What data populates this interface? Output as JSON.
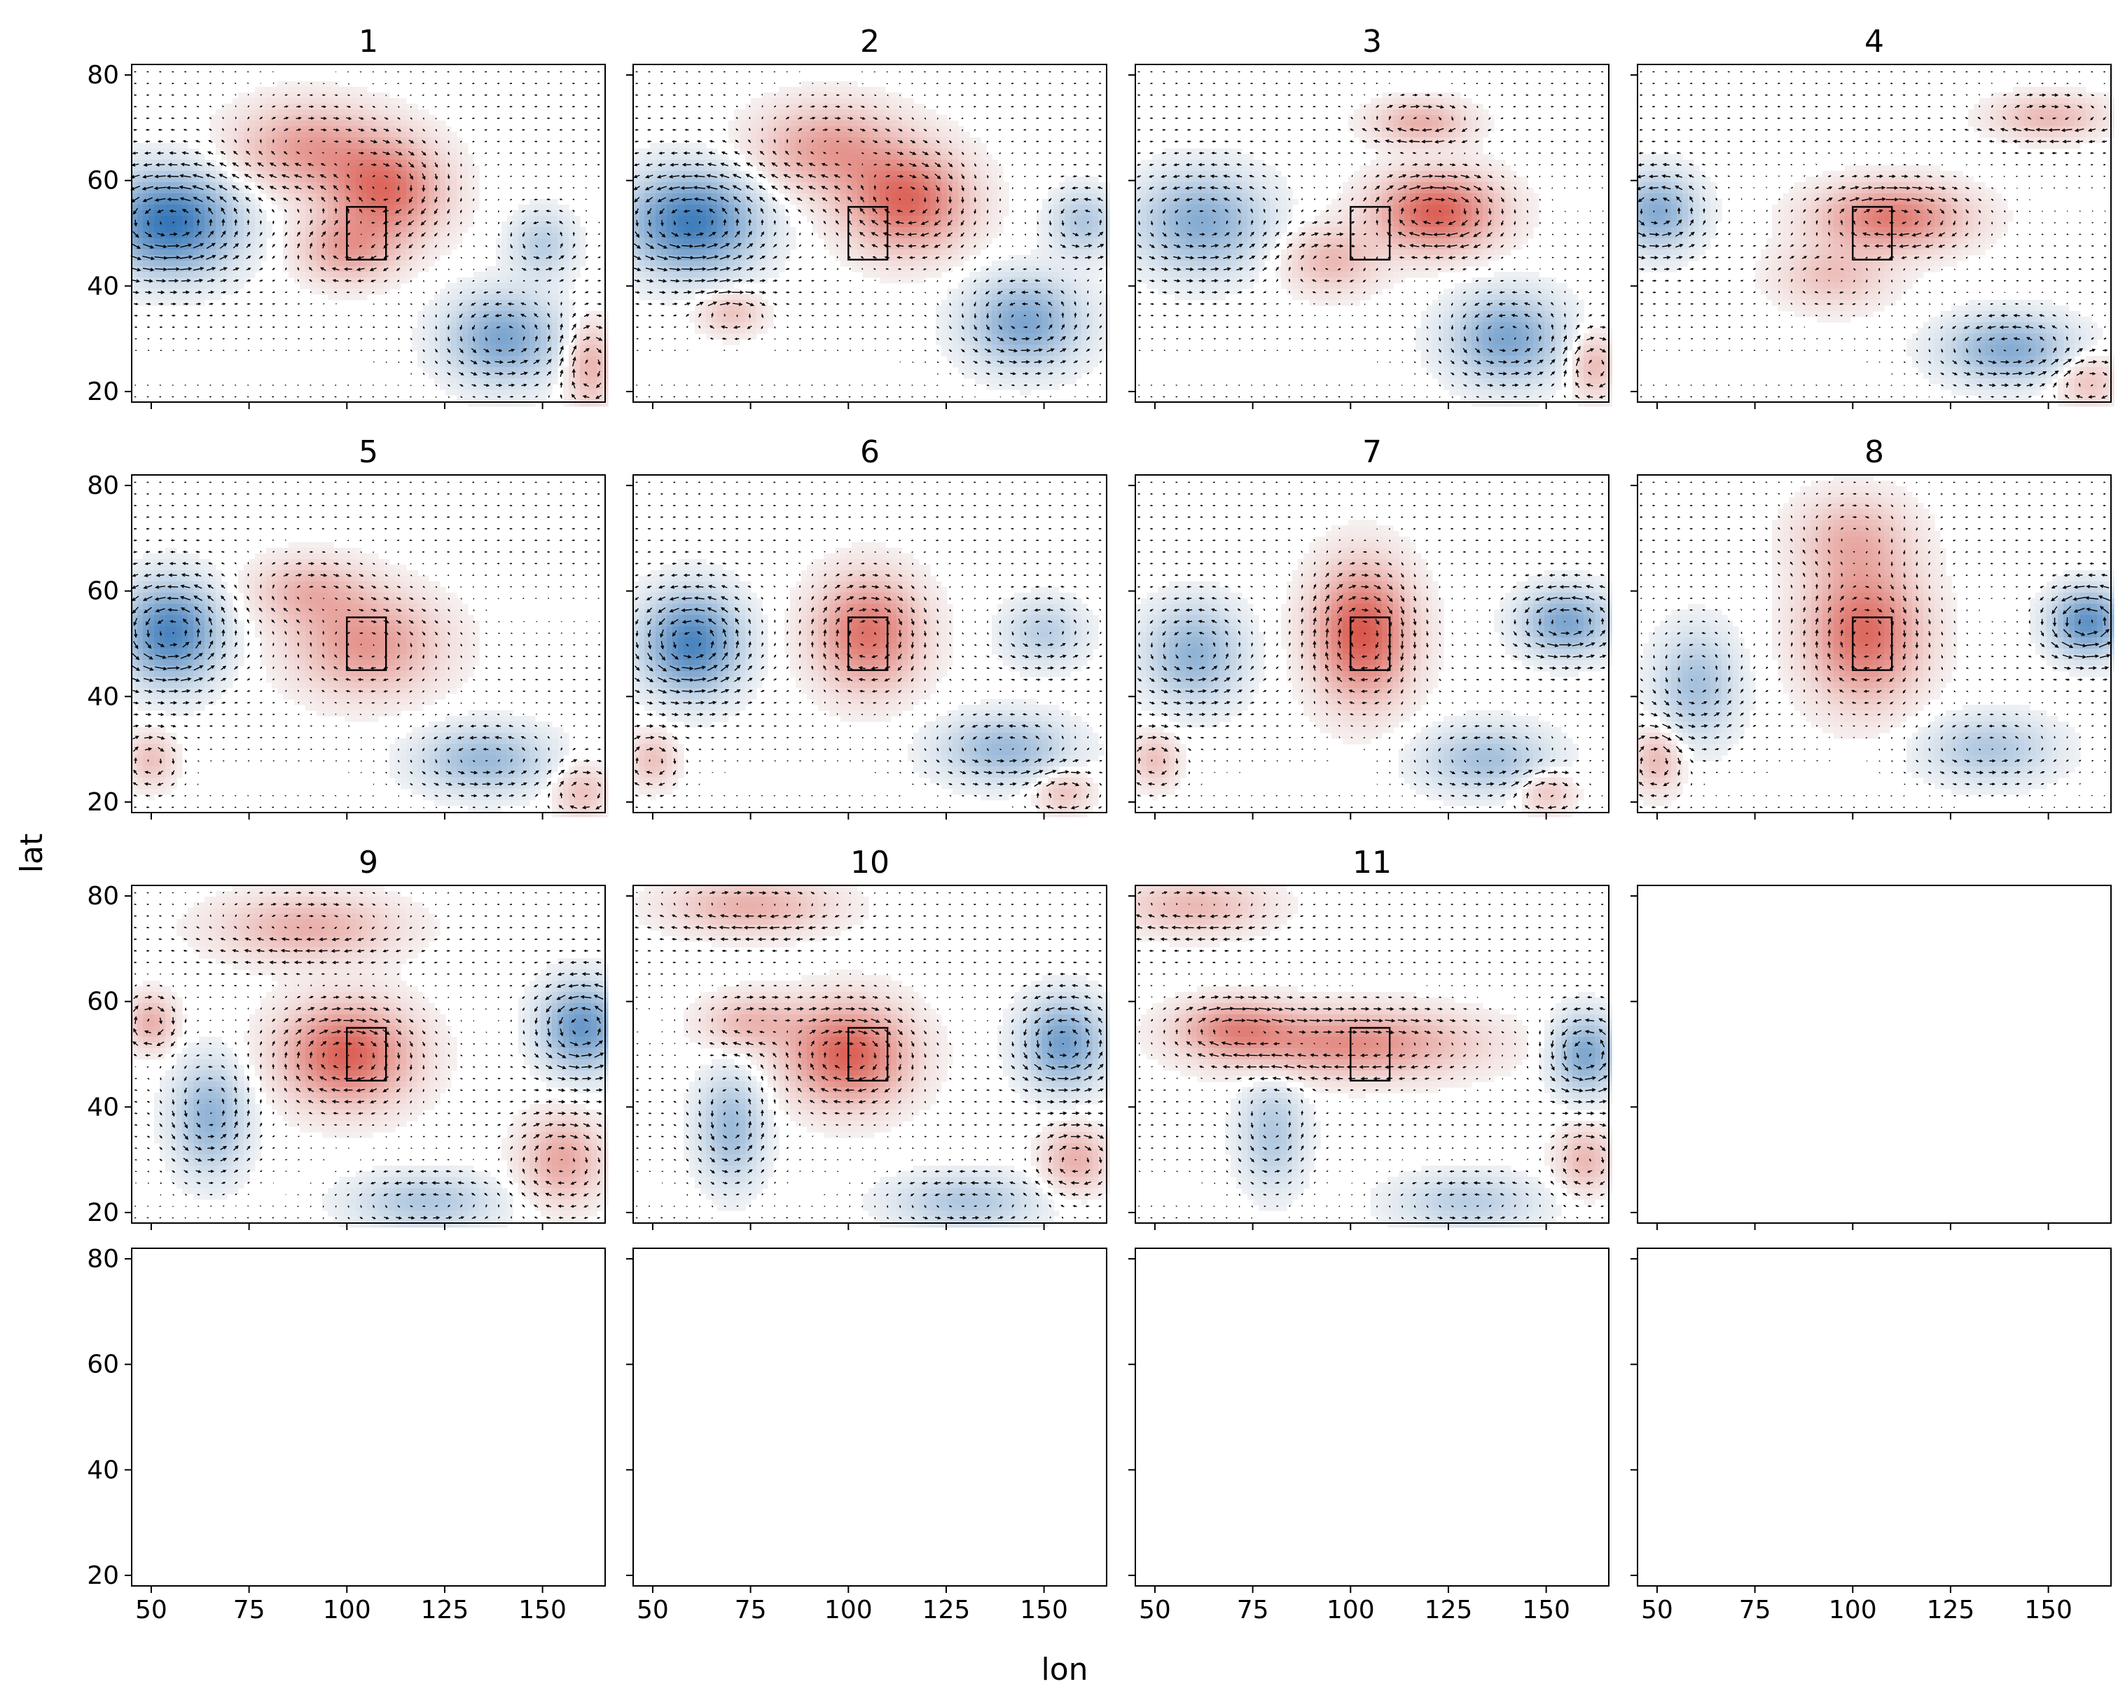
{
  "chart_data": {
    "type": "small-multiples-contour-quiver",
    "layout": {
      "rows": 4,
      "cols": 4
    },
    "xlabel": "lon",
    "ylabel": "lat",
    "xlim": [
      45,
      166
    ],
    "ylim": [
      18,
      82
    ],
    "xticks": [
      50,
      75,
      100,
      125,
      150
    ],
    "yticks": [
      20,
      40,
      60,
      80
    ],
    "sharex": true,
    "sharey": true,
    "colormap": {
      "name": "diverging-red-blue",
      "negative": "#2b6fb4",
      "zero": "#f7f7f7",
      "positive": "#d6463a"
    },
    "target_box": {
      "lon": [
        100,
        110
      ],
      "lat": [
        45,
        55
      ]
    },
    "panels": [
      {
        "title": "1",
        "has_data": true,
        "features": [
          {
            "sign": "neg",
            "lon": 55,
            "lat": 52,
            "amp": 0.95,
            "rlon": 16,
            "rlat": 9
          },
          {
            "sign": "pos",
            "lon": 110,
            "lat": 58,
            "amp": 0.75,
            "rlon": 14,
            "rlat": 9
          },
          {
            "sign": "pos",
            "lon": 90,
            "lat": 66,
            "amp": 0.5,
            "rlon": 18,
            "rlat": 8
          },
          {
            "sign": "pos",
            "lon": 100,
            "lat": 47,
            "amp": 0.45,
            "rlon": 12,
            "rlat": 6
          },
          {
            "sign": "neg",
            "lon": 140,
            "lat": 30,
            "amp": 0.6,
            "rlon": 14,
            "rlat": 8
          },
          {
            "sign": "pos",
            "lon": 162,
            "lat": 25,
            "amp": 0.4,
            "rlon": 6,
            "rlat": 8
          },
          {
            "sign": "neg",
            "lon": 150,
            "lat": 48,
            "amp": 0.3,
            "rlon": 8,
            "rlat": 6
          }
        ]
      },
      {
        "title": "2",
        "has_data": true,
        "features": [
          {
            "sign": "neg",
            "lon": 60,
            "lat": 52,
            "amp": 0.9,
            "rlon": 16,
            "rlat": 9
          },
          {
            "sign": "pos",
            "lon": 115,
            "lat": 56,
            "amp": 0.8,
            "rlon": 15,
            "rlat": 9
          },
          {
            "sign": "pos",
            "lon": 95,
            "lat": 66,
            "amp": 0.5,
            "rlon": 18,
            "rlat": 8
          },
          {
            "sign": "neg",
            "lon": 145,
            "lat": 33,
            "amp": 0.6,
            "rlon": 14,
            "rlat": 8
          },
          {
            "sign": "pos",
            "lon": 70,
            "lat": 35,
            "amp": 0.3,
            "rlon": 8,
            "rlat": 4
          },
          {
            "sign": "neg",
            "lon": 160,
            "lat": 52,
            "amp": 0.35,
            "rlon": 8,
            "rlat": 6
          }
        ]
      },
      {
        "title": "3",
        "has_data": true,
        "features": [
          {
            "sign": "neg",
            "lon": 62,
            "lat": 52,
            "amp": 0.55,
            "rlon": 16,
            "rlat": 9
          },
          {
            "sign": "pos",
            "lon": 122,
            "lat": 54,
            "amp": 0.85,
            "rlon": 15,
            "rlat": 7
          },
          {
            "sign": "pos",
            "lon": 118,
            "lat": 71,
            "amp": 0.4,
            "rlon": 12,
            "rlat": 4
          },
          {
            "sign": "pos",
            "lon": 95,
            "lat": 45,
            "amp": 0.35,
            "rlon": 12,
            "rlat": 6
          },
          {
            "sign": "neg",
            "lon": 140,
            "lat": 30,
            "amp": 0.6,
            "rlon": 14,
            "rlat": 8
          },
          {
            "sign": "pos",
            "lon": 162,
            "lat": 25,
            "amp": 0.35,
            "rlon": 6,
            "rlat": 6
          }
        ]
      },
      {
        "title": "4",
        "has_data": true,
        "features": [
          {
            "sign": "neg",
            "lon": 50,
            "lat": 54,
            "amp": 0.55,
            "rlon": 10,
            "rlat": 7
          },
          {
            "sign": "pos",
            "lon": 110,
            "lat": 53,
            "amp": 0.7,
            "rlon": 18,
            "rlat": 6
          },
          {
            "sign": "pos",
            "lon": 150,
            "lat": 72,
            "amp": 0.35,
            "rlon": 14,
            "rlat": 4
          },
          {
            "sign": "pos",
            "lon": 95,
            "lat": 42,
            "amp": 0.3,
            "rlon": 14,
            "rlat": 6
          },
          {
            "sign": "neg",
            "lon": 140,
            "lat": 28,
            "amp": 0.55,
            "rlon": 16,
            "rlat": 6
          },
          {
            "sign": "pos",
            "lon": 160,
            "lat": 22,
            "amp": 0.3,
            "rlon": 8,
            "rlat": 5
          }
        ]
      },
      {
        "title": "5",
        "has_data": true,
        "features": [
          {
            "sign": "neg",
            "lon": 55,
            "lat": 52,
            "amp": 0.85,
            "rlon": 12,
            "rlat": 9
          },
          {
            "sign": "pos",
            "lon": 105,
            "lat": 50,
            "amp": 0.55,
            "rlon": 18,
            "rlat": 9
          },
          {
            "sign": "pos",
            "lon": 90,
            "lat": 60,
            "amp": 0.35,
            "rlon": 14,
            "rlat": 6
          },
          {
            "sign": "neg",
            "lon": 135,
            "lat": 28,
            "amp": 0.45,
            "rlon": 16,
            "rlat": 6
          },
          {
            "sign": "pos",
            "lon": 50,
            "lat": 28,
            "amp": 0.3,
            "rlon": 6,
            "rlat": 5
          },
          {
            "sign": "pos",
            "lon": 160,
            "lat": 22,
            "amp": 0.3,
            "rlon": 7,
            "rlat": 5
          }
        ]
      },
      {
        "title": "6",
        "has_data": true,
        "features": [
          {
            "sign": "neg",
            "lon": 60,
            "lat": 50,
            "amp": 0.85,
            "rlon": 12,
            "rlat": 9
          },
          {
            "sign": "pos",
            "lon": 105,
            "lat": 52,
            "amp": 0.75,
            "rlon": 13,
            "rlat": 10
          },
          {
            "sign": "neg",
            "lon": 140,
            "lat": 30,
            "amp": 0.45,
            "rlon": 16,
            "rlat": 6
          },
          {
            "sign": "neg",
            "lon": 150,
            "lat": 52,
            "amp": 0.3,
            "rlon": 10,
            "rlat": 6
          },
          {
            "sign": "pos",
            "lon": 50,
            "lat": 28,
            "amp": 0.3,
            "rlon": 6,
            "rlat": 5
          },
          {
            "sign": "pos",
            "lon": 155,
            "lat": 22,
            "amp": 0.3,
            "rlon": 7,
            "rlat": 4
          }
        ]
      },
      {
        "title": "7",
        "has_data": true,
        "features": [
          {
            "sign": "neg",
            "lon": 60,
            "lat": 48,
            "amp": 0.5,
            "rlon": 12,
            "rlat": 9
          },
          {
            "sign": "pos",
            "lon": 103,
            "lat": 52,
            "amp": 0.9,
            "rlon": 12,
            "rlat": 12
          },
          {
            "sign": "neg",
            "lon": 155,
            "lat": 54,
            "amp": 0.6,
            "rlon": 11,
            "rlat": 6
          },
          {
            "sign": "neg",
            "lon": 135,
            "lat": 28,
            "amp": 0.4,
            "rlon": 16,
            "rlat": 6
          },
          {
            "sign": "pos",
            "lon": 50,
            "lat": 28,
            "amp": 0.3,
            "rlon": 6,
            "rlat": 5
          },
          {
            "sign": "pos",
            "lon": 150,
            "lat": 22,
            "amp": 0.3,
            "rlon": 7,
            "rlat": 4
          }
        ]
      },
      {
        "title": "8",
        "has_data": true,
        "features": [
          {
            "sign": "pos",
            "lon": 103,
            "lat": 52,
            "amp": 0.8,
            "rlon": 14,
            "rlat": 12
          },
          {
            "sign": "pos",
            "lon": 100,
            "lat": 70,
            "amp": 0.35,
            "rlon": 14,
            "rlat": 8
          },
          {
            "sign": "neg",
            "lon": 160,
            "lat": 54,
            "amp": 0.75,
            "rlon": 9,
            "rlat": 6
          },
          {
            "sign": "neg",
            "lon": 60,
            "lat": 42,
            "amp": 0.4,
            "rlon": 10,
            "rlat": 10
          },
          {
            "sign": "neg",
            "lon": 135,
            "lat": 30,
            "amp": 0.35,
            "rlon": 16,
            "rlat": 6
          },
          {
            "sign": "pos",
            "lon": 50,
            "lat": 28,
            "amp": 0.35,
            "rlon": 6,
            "rlat": 6
          }
        ]
      },
      {
        "title": "9",
        "has_data": true,
        "features": [
          {
            "sign": "pos",
            "lon": 100,
            "lat": 50,
            "amp": 0.85,
            "rlon": 16,
            "rlat": 9
          },
          {
            "sign": "pos",
            "lon": 90,
            "lat": 74,
            "amp": 0.4,
            "rlon": 22,
            "rlat": 6
          },
          {
            "sign": "pos",
            "lon": 50,
            "lat": 56,
            "amp": 0.4,
            "rlon": 6,
            "rlat": 5
          },
          {
            "sign": "neg",
            "lon": 160,
            "lat": 55,
            "amp": 0.7,
            "rlon": 10,
            "rlat": 8
          },
          {
            "sign": "neg",
            "lon": 65,
            "lat": 38,
            "amp": 0.5,
            "rlon": 9,
            "rlat": 10
          },
          {
            "sign": "neg",
            "lon": 120,
            "lat": 22,
            "amp": 0.35,
            "rlon": 18,
            "rlat": 5
          },
          {
            "sign": "pos",
            "lon": 155,
            "lat": 30,
            "amp": 0.45,
            "rlon": 10,
            "rlat": 8
          }
        ]
      },
      {
        "title": "10",
        "has_data": true,
        "features": [
          {
            "sign": "pos",
            "lon": 100,
            "lat": 50,
            "amp": 0.85,
            "rlon": 15,
            "rlat": 9
          },
          {
            "sign": "pos",
            "lon": 75,
            "lat": 78,
            "amp": 0.4,
            "rlon": 20,
            "rlat": 5
          },
          {
            "sign": "pos",
            "lon": 75,
            "lat": 56,
            "amp": 0.35,
            "rlon": 12,
            "rlat": 5
          },
          {
            "sign": "neg",
            "lon": 155,
            "lat": 52,
            "amp": 0.65,
            "rlon": 10,
            "rlat": 8
          },
          {
            "sign": "neg",
            "lon": 70,
            "lat": 36,
            "amp": 0.45,
            "rlon": 8,
            "rlat": 10
          },
          {
            "sign": "neg",
            "lon": 130,
            "lat": 22,
            "amp": 0.35,
            "rlon": 18,
            "rlat": 5
          },
          {
            "sign": "pos",
            "lon": 158,
            "lat": 30,
            "amp": 0.4,
            "rlon": 8,
            "rlat": 6
          }
        ]
      },
      {
        "title": "11",
        "has_data": true,
        "features": [
          {
            "sign": "pos",
            "lon": 100,
            "lat": 52,
            "amp": 0.6,
            "rlon": 30,
            "rlat": 6
          },
          {
            "sign": "pos",
            "lon": 70,
            "lat": 55,
            "amp": 0.5,
            "rlon": 14,
            "rlat": 5
          },
          {
            "sign": "pos",
            "lon": 60,
            "lat": 78,
            "amp": 0.35,
            "rlon": 18,
            "rlat": 5
          },
          {
            "sign": "neg",
            "lon": 160,
            "lat": 50,
            "amp": 0.6,
            "rlon": 8,
            "rlat": 7
          },
          {
            "sign": "neg",
            "lon": 80,
            "lat": 35,
            "amp": 0.35,
            "rlon": 8,
            "rlat": 10
          },
          {
            "sign": "neg",
            "lon": 130,
            "lat": 22,
            "amp": 0.3,
            "rlon": 18,
            "rlat": 5
          },
          {
            "sign": "pos",
            "lon": 160,
            "lat": 30,
            "amp": 0.35,
            "rlon": 7,
            "rlat": 6
          }
        ]
      },
      {
        "title": "",
        "has_data": false
      },
      {
        "title": "",
        "has_data": false
      },
      {
        "title": "",
        "has_data": false
      },
      {
        "title": "",
        "has_data": false
      },
      {
        "title": "",
        "has_data": false
      }
    ]
  }
}
